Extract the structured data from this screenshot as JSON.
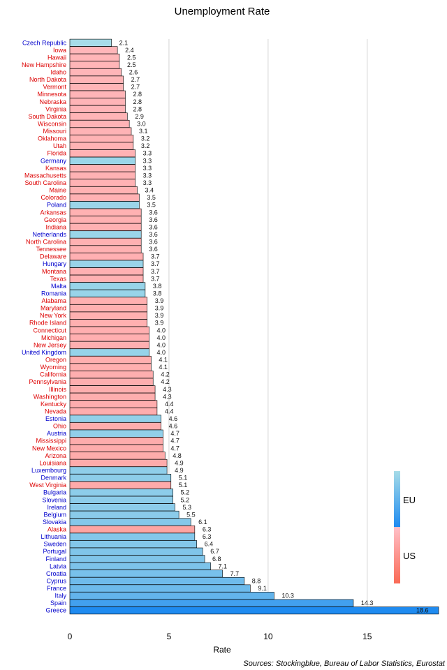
{
  "chart_data": {
    "type": "bar",
    "orientation": "horizontal",
    "title": "Unemployment Rate",
    "xlabel": "Rate",
    "ylabel": "",
    "xlim": [
      0,
      18.6
    ],
    "xticks": [
      0,
      5,
      10,
      15
    ],
    "grid": true,
    "legend_placement": "bottom-right",
    "source": "Sources: Stockingblue, Bureau of Labor Statistics, Eurostat",
    "colors": {
      "EU": "#1f8bf0",
      "US": "#ffb6b9",
      "EU_label_text": "#0000cc",
      "US_label_text": "#dd0000"
    },
    "legend": [
      "EU",
      "US"
    ],
    "categories": [
      "Czech Republic",
      "Iowa",
      "Hawaii",
      "New Hampshire",
      "Idaho",
      "North Dakota",
      "Vermont",
      "Minnesota",
      "Nebraska",
      "Virginia",
      "South Dakota",
      "Wisconsin",
      "Missouri",
      "Oklahoma",
      "Utah",
      "Florida",
      "Germany",
      "Kansas",
      "Massachusetts",
      "South Carolina",
      "Maine",
      "Colorado",
      "Poland",
      "Arkansas",
      "Georgia",
      "Indiana",
      "Netherlands",
      "North Carolina",
      "Tennessee",
      "Delaware",
      "Hungary",
      "Montana",
      "Texas",
      "Malta",
      "Romania",
      "Alabama",
      "Maryland",
      "New York",
      "Rhode Island",
      "Connecticut",
      "Michigan",
      "New Jersey",
      "United Kingdom",
      "Oregon",
      "Wyoming",
      "California",
      "Pennsylvania",
      "Illinois",
      "Washington",
      "Kentucky",
      "Nevada",
      "Estonia",
      "Ohio",
      "Austria",
      "Mississippi",
      "New Mexico",
      "Arizona",
      "Louisiana",
      "Luxembourg",
      "Denmark",
      "West Virginia",
      "Bulgaria",
      "Slovenia",
      "Ireland",
      "Belgium",
      "Slovakia",
      "Alaska",
      "Lithuania",
      "Sweden",
      "Portugal",
      "Finland",
      "Latvia",
      "Croatia",
      "Cyprus",
      "France",
      "Italy",
      "Spain",
      "Greece"
    ],
    "values": [
      2.1,
      2.4,
      2.5,
      2.5,
      2.6,
      2.7,
      2.7,
      2.8,
      2.8,
      2.8,
      2.9,
      3.0,
      3.1,
      3.2,
      3.2,
      3.3,
      3.3,
      3.3,
      3.3,
      3.3,
      3.4,
      3.5,
      3.5,
      3.6,
      3.6,
      3.6,
      3.6,
      3.6,
      3.6,
      3.7,
      3.7,
      3.7,
      3.7,
      3.8,
      3.8,
      3.9,
      3.9,
      3.9,
      3.9,
      4.0,
      4.0,
      4.0,
      4.0,
      4.1,
      4.1,
      4.2,
      4.2,
      4.3,
      4.3,
      4.4,
      4.4,
      4.6,
      4.6,
      4.7,
      4.7,
      4.7,
      4.8,
      4.9,
      4.9,
      5.1,
      5.1,
      5.2,
      5.2,
      5.3,
      5.5,
      6.1,
      6.3,
      6.3,
      6.4,
      6.7,
      6.8,
      7.1,
      7.7,
      8.8,
      9.1,
      10.3,
      14.3,
      18.6
    ],
    "value_labels": [
      "2.1",
      "2.4",
      "2.5",
      "2.5",
      "2.6",
      "2.7",
      "2.7",
      "2.8",
      "2.8",
      "2.8",
      "2.9",
      "3.0",
      "3.1",
      "3.2",
      "3.2",
      "3.3",
      "3.3",
      "3.3",
      "3.3",
      "3.3",
      "3.4",
      "3.5",
      "3.5",
      "3.6",
      "3.6",
      "3.6",
      "3.6",
      "3.6",
      "3.6",
      "3.7",
      "3.7",
      "3.7",
      "3.7",
      "3.8",
      "3.8",
      "3.9",
      "3.9",
      "3.9",
      "3.9",
      "4.0",
      "4.0",
      "4.0",
      "4.0",
      "4.1",
      "4.1",
      "4.2",
      "4.2",
      "4.3",
      "4.3",
      "4.4",
      "4.4",
      "4.6",
      "4.6",
      "4.7",
      "4.7",
      "4.7",
      "4.8",
      "4.9",
      "4.9",
      "5.1",
      "5.1",
      "5.2",
      "5.2",
      "5.3",
      "5.5",
      "6.1",
      "6.3",
      "6.3",
      "6.4",
      "6.7",
      "6.8",
      "7.1",
      "7.7",
      "8.8",
      "9.1",
      "10.3",
      "14.3",
      "18.6"
    ],
    "groups": [
      "EU",
      "US",
      "US",
      "US",
      "US",
      "US",
      "US",
      "US",
      "US",
      "US",
      "US",
      "US",
      "US",
      "US",
      "US",
      "US",
      "EU",
      "US",
      "US",
      "US",
      "US",
      "US",
      "EU",
      "US",
      "US",
      "US",
      "EU",
      "US",
      "US",
      "US",
      "EU",
      "US",
      "US",
      "EU",
      "EU",
      "US",
      "US",
      "US",
      "US",
      "US",
      "US",
      "US",
      "EU",
      "US",
      "US",
      "US",
      "US",
      "US",
      "US",
      "US",
      "US",
      "EU",
      "US",
      "EU",
      "US",
      "US",
      "US",
      "US",
      "EU",
      "EU",
      "US",
      "EU",
      "EU",
      "EU",
      "EU",
      "EU",
      "US",
      "EU",
      "EU",
      "EU",
      "EU",
      "EU",
      "EU",
      "EU",
      "EU",
      "EU",
      "EU",
      "EU"
    ]
  }
}
